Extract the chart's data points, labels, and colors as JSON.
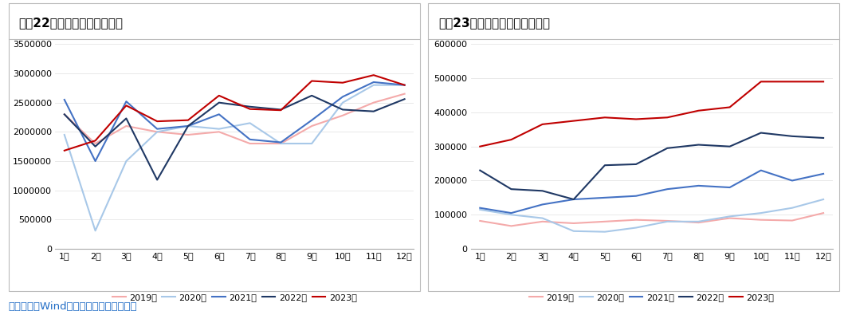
{
  "chart1_title": "图表22：中国汽车销量（辆）",
  "chart2_title": "图表23：中国汽车出口量（辆）",
  "source_text": "数据来源：Wind，广发期货发展研究中心",
  "months": [
    "1月",
    "2月",
    "3月",
    "4月",
    "5月",
    "6月",
    "7月",
    "8月",
    "9月",
    "10月",
    "11月",
    "12月"
  ],
  "series_labels": [
    "2019年",
    "2020年",
    "2021年",
    "2022年",
    "2023年"
  ],
  "series_colors": [
    "#F4AAAA",
    "#A8C8E8",
    "#4472C4",
    "#1F3864",
    "#C00000"
  ],
  "chart1_data": {
    "2019": [
      2300000,
      1800000,
      2100000,
      2000000,
      1950000,
      2000000,
      1800000,
      1800000,
      2100000,
      2280000,
      2500000,
      2650000
    ],
    "2020": [
      1950000,
      310000,
      1500000,
      2000000,
      2100000,
      2050000,
      2150000,
      1800000,
      1800000,
      2500000,
      2800000,
      2800000
    ],
    "2021": [
      2550000,
      1500000,
      2520000,
      2050000,
      2100000,
      2300000,
      1870000,
      1820000,
      2200000,
      2600000,
      2850000,
      2800000
    ],
    "2022": [
      2300000,
      1750000,
      2230000,
      1180000,
      2100000,
      2500000,
      2430000,
      2380000,
      2620000,
      2380000,
      2350000,
      2560000
    ],
    "2023": [
      1680000,
      1850000,
      2450000,
      2180000,
      2200000,
      2620000,
      2390000,
      2370000,
      2870000,
      2840000,
      2970000,
      2800000
    ]
  },
  "chart2_data": {
    "2019": [
      82000,
      67000,
      80000,
      75000,
      80000,
      85000,
      82000,
      77000,
      90000,
      85000,
      83000,
      105000
    ],
    "2020": [
      115000,
      100000,
      90000,
      52000,
      50000,
      62000,
      80000,
      80000,
      95000,
      105000,
      120000,
      145000
    ],
    "2021": [
      120000,
      105000,
      130000,
      145000,
      150000,
      155000,
      175000,
      185000,
      180000,
      230000,
      200000,
      220000
    ],
    "2022": [
      230000,
      175000,
      170000,
      145000,
      245000,
      248000,
      295000,
      305000,
      300000,
      340000,
      330000,
      325000
    ],
    "2023": [
      300000,
      320000,
      365000,
      375000,
      385000,
      380000,
      385000,
      405000,
      415000,
      490000,
      490000,
      490000
    ]
  },
  "chart1_ylim": [
    0,
    3500000
  ],
  "chart2_ylim": [
    0,
    600000
  ],
  "chart1_yticks": [
    0,
    500000,
    1000000,
    1500000,
    2000000,
    2500000,
    3000000,
    3500000
  ],
  "chart2_yticks": [
    0,
    100000,
    200000,
    300000,
    400000,
    500000,
    600000
  ],
  "background_color": "#FFFFFF",
  "plot_bg_color": "#FFFFFF",
  "source_color": "#1F6BC5",
  "title_color": "#000000",
  "border_color": "#BBBBBB"
}
